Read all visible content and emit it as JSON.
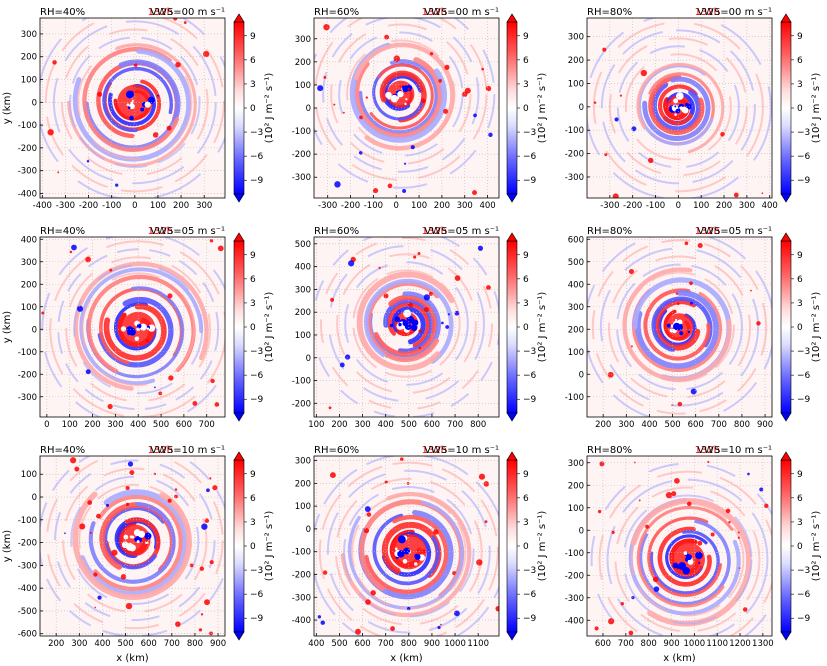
{
  "figure": {
    "time_label": "132h",
    "xlabel": "x (km)",
    "ylabel": "y (km)",
    "colorbar_ticks": [
      "9",
      "6",
      "3",
      "0",
      "−3",
      "−6",
      "−9"
    ],
    "colorbar_label": "(10² J m⁻² s⁻¹)",
    "colors": {
      "positive": "#ff0000",
      "negative": "#0000ff",
      "title_time": "#e00000",
      "grid": "#bbbbbb"
    }
  },
  "chart_data": [
    {
      "type": "heatmap",
      "rh": "RH=40%",
      "vws": "VWS=00 m s⁻¹",
      "xticks": [
        -400,
        -300,
        -200,
        -100,
        0,
        100,
        200,
        300
      ],
      "xlim": [
        -410,
        390
      ],
      "yticks": [
        -400,
        -300,
        -200,
        -100,
        0,
        100,
        200,
        300
      ],
      "ylim": [
        -420,
        370
      ],
      "center": [
        0,
        0
      ],
      "eye_radius": 45,
      "band_width": 28,
      "noise": 0.12
    },
    {
      "type": "heatmap",
      "rh": "RH=60%",
      "vws": "VWS=00 m s⁻¹",
      "xticks": [
        -300,
        -200,
        -100,
        0,
        100,
        200,
        300,
        400
      ],
      "xlim": [
        -360,
        450
      ],
      "yticks": [
        -300,
        -200,
        -100,
        0,
        100,
        200,
        300
      ],
      "ylim": [
        -390,
        390
      ],
      "center": [
        20,
        60
      ],
      "eye_radius": 35,
      "band_width": 24,
      "noise": 0.25
    },
    {
      "type": "heatmap",
      "rh": "RH=80%",
      "vws": "VWS=00 m s⁻¹",
      "xticks": [
        -300,
        -200,
        -100,
        0,
        100,
        200,
        300,
        400
      ],
      "xlim": [
        -400,
        410
      ],
      "yticks": [
        -300,
        -200,
        -100,
        0,
        100,
        200,
        300
      ],
      "ylim": [
        -390,
        380
      ],
      "center": [
        0,
        0
      ],
      "eye_radius": 30,
      "band_width": 20,
      "noise": 0.1
    },
    {
      "type": "heatmap",
      "rh": "RH=40%",
      "vws": "VWS=05 m s⁻¹",
      "xticks": [
        0,
        100,
        200,
        300,
        400,
        500,
        600,
        700
      ],
      "xlim": [
        -30,
        780
      ],
      "yticks": [
        -300,
        -200,
        -100,
        0,
        100,
        200,
        300,
        400
      ],
      "ylim": [
        -390,
        410
      ],
      "center": [
        400,
        0
      ],
      "eye_radius": 45,
      "band_width": 30,
      "noise": 0.15
    },
    {
      "type": "heatmap",
      "rh": "RH=60%",
      "vws": "VWS=05 m s⁻¹",
      "xticks": [
        100,
        200,
        300,
        400,
        500,
        600,
        700,
        800
      ],
      "xlim": [
        90,
        890
      ],
      "yticks": [
        -200,
        -100,
        0,
        100,
        200,
        300,
        400,
        500
      ],
      "ylim": [
        -260,
        530
      ],
      "center": [
        490,
        150
      ],
      "eye_radius": 30,
      "band_width": 22,
      "noise": 0.2
    },
    {
      "type": "heatmap",
      "rh": "RH=80%",
      "vws": "VWS=05 m s⁻¹",
      "xticks": [
        200,
        300,
        400,
        500,
        600,
        700,
        800,
        900
      ],
      "xlim": [
        130,
        930
      ],
      "yticks": [
        -100,
        0,
        100,
        200,
        300,
        400,
        500,
        600
      ],
      "ylim": [
        -190,
        610
      ],
      "center": [
        530,
        210
      ],
      "eye_radius": 35,
      "band_width": 25,
      "noise": 0.12
    },
    {
      "type": "heatmap",
      "rh": "RH=40%",
      "vws": "VWS=10 m s⁻¹",
      "xticks": [
        200,
        300,
        400,
        500,
        600,
        700,
        800,
        900
      ],
      "xlim": [
        130,
        930
      ],
      "yticks": [
        -600,
        -500,
        -400,
        -300,
        -200,
        -100,
        0,
        100
      ],
      "ylim": [
        -610,
        180
      ],
      "center": [
        540,
        -190
      ],
      "eye_radius": 40,
      "band_width": 26,
      "noise": 0.3
    },
    {
      "type": "heatmap",
      "rh": "RH=60%",
      "vws": "VWS=10 m s⁻¹",
      "xticks": [
        400,
        500,
        600,
        700,
        800,
        900,
        1000,
        1100
      ],
      "xlim": [
        390,
        1190
      ],
      "yticks": [
        -400,
        -300,
        -200,
        -100,
        0,
        100,
        200,
        300
      ],
      "ylim": [
        -470,
        320
      ],
      "center": [
        800,
        -100
      ],
      "eye_radius": 45,
      "band_width": 28,
      "noise": 0.22
    },
    {
      "type": "heatmap",
      "rh": "RH=80%",
      "vws": "VWS=10 m s⁻¹",
      "xticks": [
        600,
        700,
        800,
        900,
        1000,
        1100,
        1200,
        1300
      ],
      "xlim": [
        530,
        1340
      ],
      "yticks": [
        -400,
        -300,
        -200,
        -100,
        0,
        100,
        200,
        300
      ],
      "ylim": [
        -470,
        330
      ],
      "center": [
        970,
        -130
      ],
      "eye_radius": 45,
      "band_width": 28,
      "noise": 0.25
    }
  ]
}
